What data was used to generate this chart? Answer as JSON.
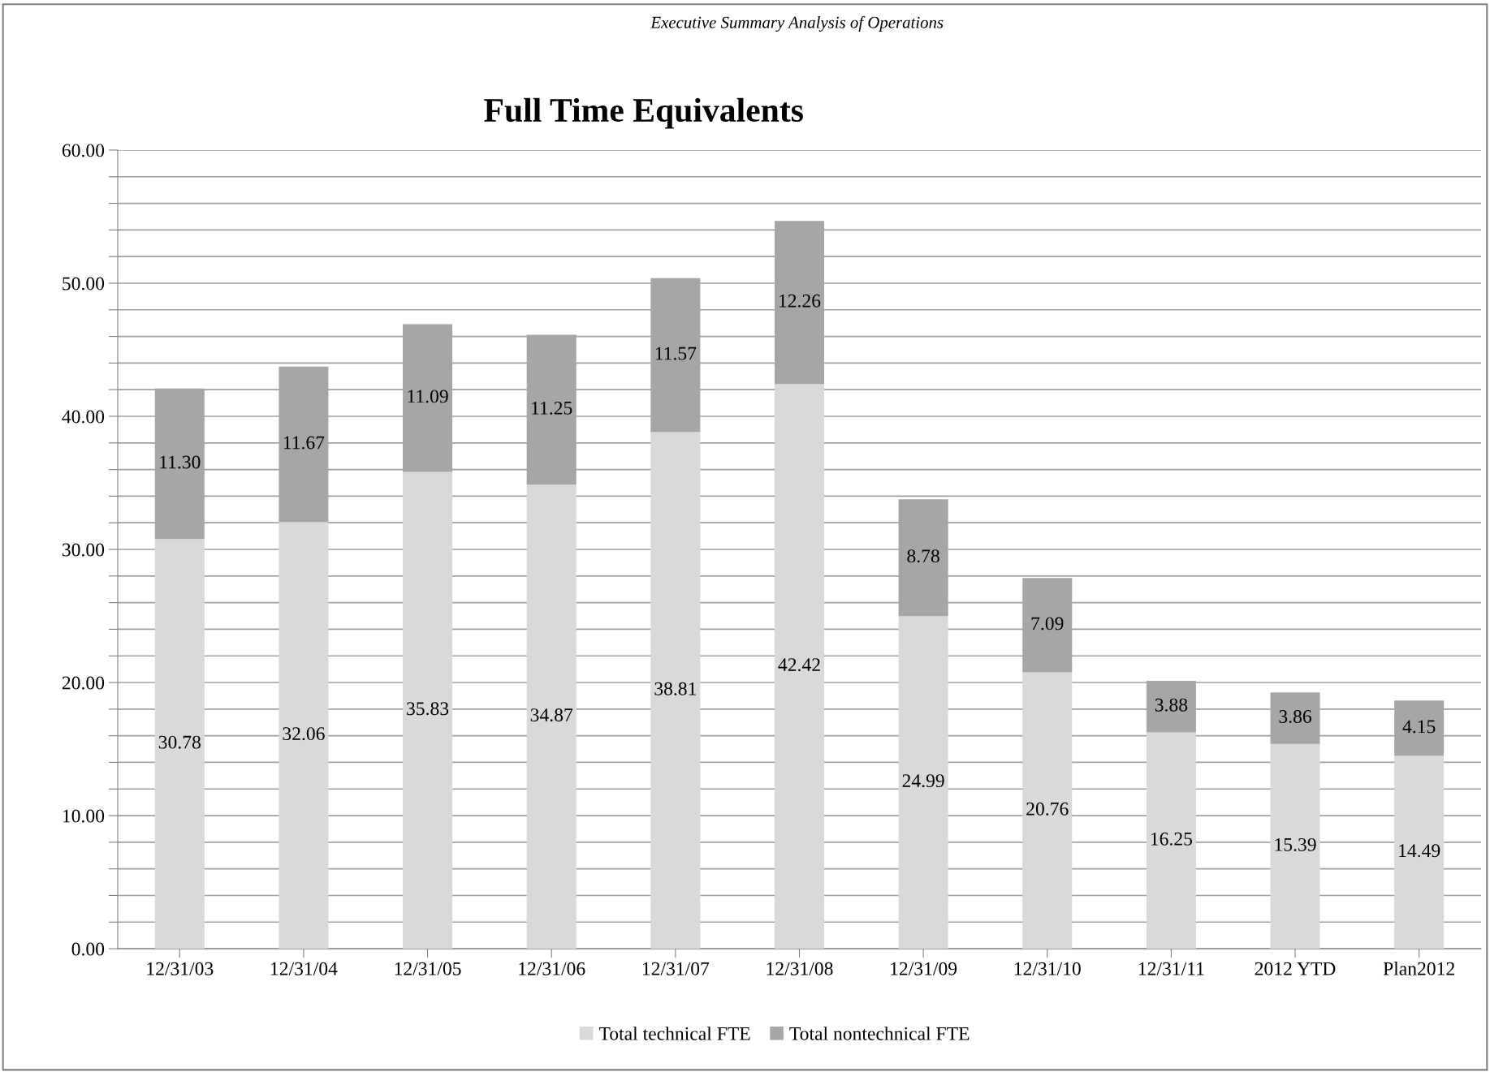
{
  "chart_data": {
    "type": "bar",
    "title": "Full Time Equivalents",
    "annotations": [
      "Executive Summary Analysis of Operations"
    ],
    "categories": [
      "12/31/03",
      "12/31/04",
      "12/31/05",
      "12/31/06",
      "12/31/07",
      "12/31/08",
      "12/31/09",
      "12/31/10",
      "12/31/11",
      "2012 YTD",
      "Plan2012"
    ],
    "series": [
      {
        "name": "Total technical FTE",
        "color": "#d9d9d9",
        "values": [
          30.78,
          32.06,
          35.83,
          34.87,
          38.81,
          42.42,
          24.99,
          20.76,
          16.25,
          15.39,
          14.49
        ]
      },
      {
        "name": "Total nontechnical FTE",
        "color": "#a6a6a6",
        "values": [
          11.3,
          11.67,
          11.09,
          11.25,
          11.57,
          12.26,
          8.78,
          7.09,
          3.88,
          3.86,
          4.15
        ]
      }
    ],
    "value_labels": [
      [
        "30.78",
        "32.06",
        "35.83",
        "34.87",
        "38.81",
        "42.42",
        "24.99",
        "20.76",
        "16.25",
        "15.39",
        "14.49"
      ],
      [
        "11.30",
        "11.67",
        "11.09",
        "11.25",
        "11.57",
        "12.26",
        "8.78",
        "7.09",
        "3.88",
        "3.86",
        "4.15"
      ]
    ],
    "stacked": true,
    "ylim": [
      0,
      60
    ],
    "yticks": [
      {
        "value": 0,
        "label": "0.00"
      },
      {
        "value": 2,
        "label": null
      },
      {
        "value": 4,
        "label": null
      },
      {
        "value": 6,
        "label": null
      },
      {
        "value": 8,
        "label": null
      },
      {
        "value": 10,
        "label": "10.00"
      },
      {
        "value": 12,
        "label": null
      },
      {
        "value": 14,
        "label": null
      },
      {
        "value": 16,
        "label": null
      },
      {
        "value": 18,
        "label": null
      },
      {
        "value": 20,
        "label": "20.00"
      },
      {
        "value": 22,
        "label": null
      },
      {
        "value": 24,
        "label": null
      },
      {
        "value": 26,
        "label": null
      },
      {
        "value": 28,
        "label": null
      },
      {
        "value": 30,
        "label": "30.00"
      },
      {
        "value": 32,
        "label": null
      },
      {
        "value": 34,
        "label": null
      },
      {
        "value": 36,
        "label": null
      },
      {
        "value": 38,
        "label": null
      },
      {
        "value": 40,
        "label": "40.00"
      },
      {
        "value": 42,
        "label": null
      },
      {
        "value": 44,
        "label": null
      },
      {
        "value": 46,
        "label": null
      },
      {
        "value": 48,
        "label": null
      },
      {
        "value": 50,
        "label": "50.00"
      },
      {
        "value": 52,
        "label": null
      },
      {
        "value": 54,
        "label": null
      },
      {
        "value": 56,
        "label": null
      },
      {
        "value": 58,
        "label": null
      },
      {
        "value": 60,
        "label": "60.00"
      }
    ],
    "grid": "y",
    "legend": "bottom"
  }
}
